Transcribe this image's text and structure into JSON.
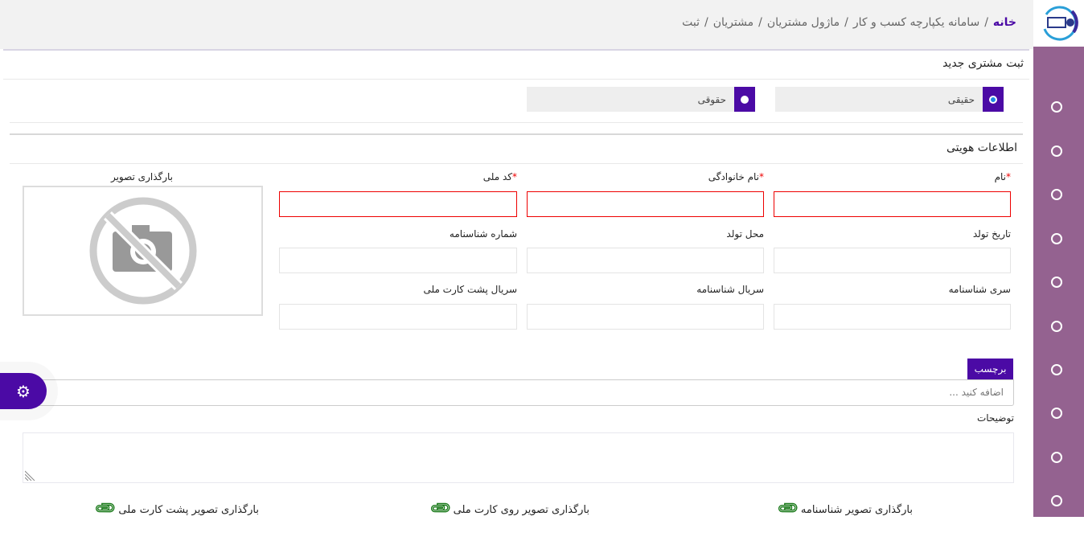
{
  "breadcrumb": {
    "items": [
      "خانه",
      "سامانه یکپارچه کسب و کار",
      "ماژول مشتریان",
      "مشتریان",
      "ثبت"
    ],
    "separator": "/"
  },
  "page_title": "ثبت مشتری جدید",
  "person_type": {
    "options": [
      {
        "label": "حقیقی",
        "selected": true
      },
      {
        "label": "حقوقی",
        "selected": false
      }
    ]
  },
  "identity": {
    "title": "اطلاعات هویتی",
    "fields": {
      "first_name": "نام",
      "last_name": "نام خانوادگی",
      "national_code": "کد ملی",
      "birth_date": "تاریخ تولد",
      "birth_place": "محل تولد",
      "id_number": "شماره شناسنامه",
      "id_series": "سری شناسنامه",
      "id_serial": "سریال شناسنامه",
      "card_back_serial": "سریال پشت کارت ملی"
    },
    "required_mark": "*",
    "image_upload_label": "بارگذاری تصویر"
  },
  "tags": {
    "label": "برچسب",
    "placeholder": "اضافه کنید ..."
  },
  "description": {
    "label": "توضیحات"
  },
  "uploads": [
    "بارگذاری تصویر شناسنامه",
    "بارگذاری تصویر روی کارت ملی",
    "بارگذاری تصویر پشت کارت ملی"
  ],
  "colors": {
    "primary": "#4b0aa5",
    "sidebar": "#946290",
    "error": "#e00000",
    "clip": "#1a7a1a"
  },
  "icons": {
    "settings": "gear-icon",
    "upload": "paperclip-icon",
    "no-image": "no-photo-icon"
  }
}
